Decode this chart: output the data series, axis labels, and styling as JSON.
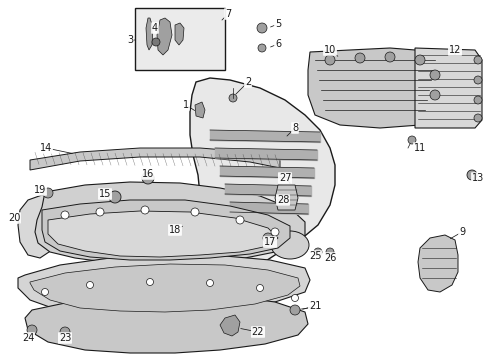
{
  "bg_color": "#ffffff",
  "fig_width": 4.89,
  "fig_height": 3.6,
  "dpi": 100,
  "line_color": "#1a1a1a",
  "label_fontsize": 7.0,
  "gray_dark": "#787878",
  "gray_mid": "#a0a0a0",
  "gray_light": "#c8c8c8",
  "gray_fill": "#d8d8d8",
  "white": "#ffffff",
  "inset_fill": "#ebebeb"
}
